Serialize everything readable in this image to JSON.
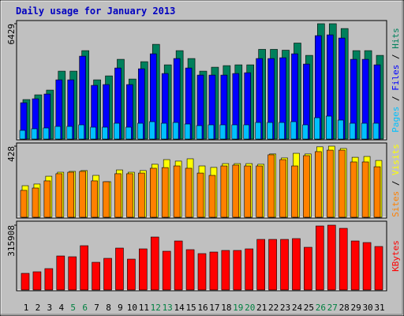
{
  "chart_data": [
    {
      "type": "bar",
      "title": "Daily usage for January 2013",
      "legend_separator": " / ",
      "ylim": [
        0,
        6429
      ],
      "yticks": [
        6429
      ],
      "series": [
        {
          "name": "Pages",
          "color": "#00c0ff",
          "values": [
            484,
            572,
            616,
            704,
            704,
            792,
            660,
            660,
            880,
            660,
            880,
            968,
            880,
            924,
            836,
            748,
            792,
            792,
            792,
            792,
            924,
            924,
            924,
            968,
            792,
            1188,
            1276,
            1056,
            880,
            880,
            880
          ]
        },
        {
          "name": "Files",
          "color": "#0000ff",
          "values": [
            2024,
            2244,
            2508,
            3300,
            3300,
            4620,
            2992,
            3036,
            3960,
            3036,
            3916,
            4752,
            3652,
            4488,
            3960,
            3564,
            3564,
            3564,
            3652,
            3696,
            4488,
            4488,
            4532,
            4752,
            4180,
            5764,
            5808,
            5632,
            4444,
            4444,
            4136
          ]
        },
        {
          "name": "Hits",
          "color": "#00805c",
          "values": [
            2200,
            2464,
            2728,
            3784,
            3784,
            4928,
            3300,
            3520,
            4444,
            3344,
            4312,
            5280,
            4136,
            4928,
            4488,
            3784,
            4004,
            4092,
            4136,
            4136,
            4999,
            4999,
            4952,
            5350,
            4664,
            6429,
            6429,
            6160,
            4928,
            4928,
            4664
          ]
        }
      ]
    },
    {
      "type": "bar",
      "legend_separator": " / ",
      "ylim": [
        0,
        428
      ],
      "yticks": [
        428
      ],
      "series": [
        {
          "name": "Sites",
          "color": "#ff8000",
          "values": [
            162,
            176,
            219,
            262,
            271,
            276,
            219,
            214,
            262,
            262,
            266,
            295,
            299,
            309,
            295,
            266,
            252,
            309,
            314,
            309,
            309,
            376,
            347,
            309,
            371,
            395,
            404,
            404,
            333,
            333,
            304
          ]
        },
        {
          "name": "Visits",
          "color": "#ffff00",
          "values": [
            190,
            200,
            247,
            271,
            276,
            281,
            252,
            214,
            285,
            271,
            281,
            319,
            347,
            338,
            352,
            309,
            300,
            323,
            323,
            323,
            319,
            381,
            357,
            385,
            381,
            424,
            428,
            414,
            361,
            366,
            342
          ]
        }
      ]
    },
    {
      "type": "bar",
      "ylim": [
        0,
        315908
      ],
      "yticks": [
        315908
      ],
      "categories": [
        "1",
        "2",
        "3",
        "4",
        "5",
        "6",
        "7",
        "8",
        "9",
        "10",
        "11",
        "12",
        "13",
        "14",
        "15",
        "16",
        "17",
        "18",
        "19",
        "20",
        "21",
        "22",
        "23",
        "24",
        "25",
        "26",
        "27",
        "28",
        "29",
        "30",
        "31"
      ],
      "category_colors": [
        "#000000",
        "#000000",
        "#000000",
        "#000000",
        "#008040",
        "#008040",
        "#000000",
        "#000000",
        "#000000",
        "#000000",
        "#000000",
        "#008040",
        "#008040",
        "#000000",
        "#000000",
        "#000000",
        "#000000",
        "#000000",
        "#008040",
        "#008040",
        "#000000",
        "#000000",
        "#000000",
        "#000000",
        "#000000",
        "#008040",
        "#008040",
        "#000000",
        "#000000",
        "#000000",
        "#000000"
      ],
      "series": [
        {
          "name": "KBytes",
          "color": "#ff0000",
          "values": [
            80892,
            88596,
            104004,
            165636,
            161784,
            215712,
            134820,
            154080,
            204156,
            150228,
            200304,
            258084,
            188748,
            238824,
            196452,
            177192,
            184896,
            192600,
            192600,
            200304,
            246528,
            246528,
            246528,
            250380,
            208008,
            311992,
            315908,
            300456,
            238824,
            231120,
            211860
          ]
        }
      ]
    }
  ]
}
